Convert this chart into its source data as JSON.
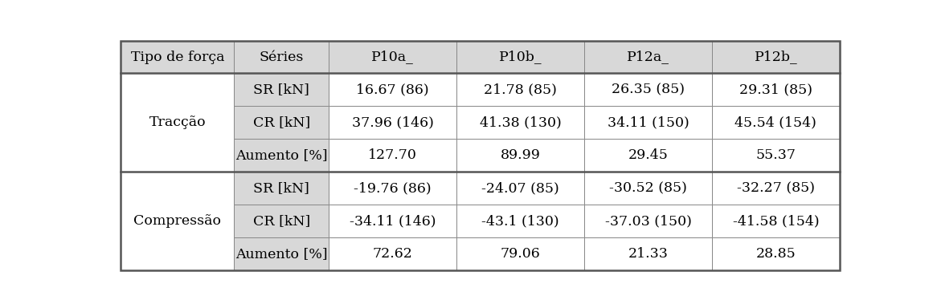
{
  "col_headers": [
    "Tipo de força",
    "Séries",
    "P10a_",
    "P10b_",
    "P12a_",
    "P12b_"
  ],
  "row_groups": [
    {
      "group_label": "Tracção",
      "rows": [
        [
          "SR [kN]",
          "16.67 (86)",
          "21.78 (85)",
          "26.35 (85)",
          "29.31 (85)"
        ],
        [
          "CR [kN]",
          "37.96 (146)",
          "41.38 (130)",
          "34.11 (150)",
          "45.54 (154)"
        ],
        [
          "Aumento [%]",
          "127.70",
          "89.99",
          "29.45",
          "55.37"
        ]
      ]
    },
    {
      "group_label": "Compressão",
      "rows": [
        [
          "SR [kN]",
          "-19.76 (86)",
          "-24.07 (85)",
          "-30.52 (85)",
          "-32.27 (85)"
        ],
        [
          "CR [kN]",
          "-34.11 (146)",
          "-43.1 (130)",
          "-37.03 (150)",
          "-41.58 (154)"
        ],
        [
          "Aumento [%]",
          "72.62",
          "79.06",
          "21.33",
          "28.85"
        ]
      ]
    }
  ],
  "bg_color": "#ffffff",
  "header_bg": "#d8d8d8",
  "cell_bg": "#ffffff",
  "text_color": "#000000",
  "border_color": "#888888",
  "thick_border_color": "#555555",
  "font_size": 12.5,
  "col_proportions": [
    0.158,
    0.132,
    0.178,
    0.178,
    0.178,
    0.178
  ],
  "n_rows": 7,
  "lm": 0.005,
  "rm": 0.005,
  "tm": 0.015,
  "bm": 0.015
}
